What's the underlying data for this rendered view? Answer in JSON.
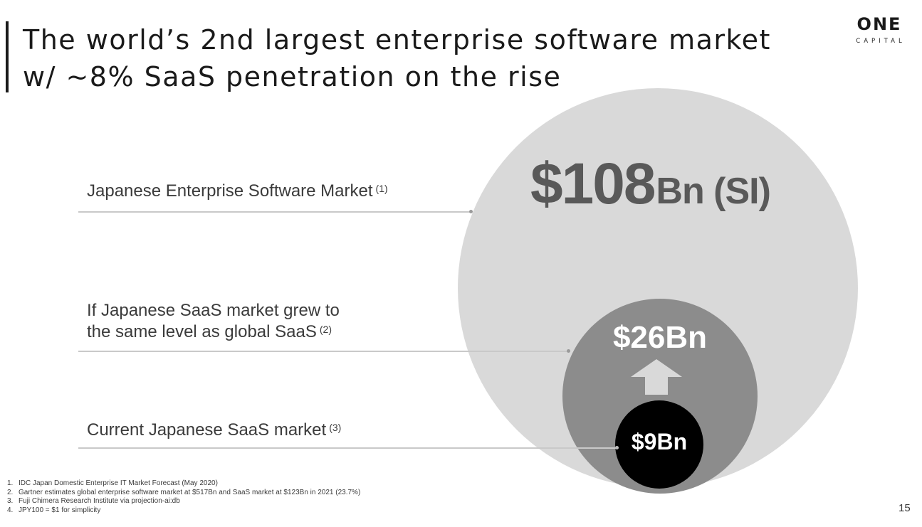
{
  "header": {
    "title_line1": "The world’s 2nd largest enterprise software market",
    "title_line2": "w/ ~8% SaaS penetration on the rise"
  },
  "logo": {
    "main": "ONE",
    "sub": "CAPITAL"
  },
  "labels": [
    {
      "text": "Japanese Enterprise Software Market",
      "note": "(1)"
    },
    {
      "line1": "If Japanese SaaS market grew to",
      "line2": "the same level as global SaaS",
      "note": "(2)"
    },
    {
      "text": "Current Japanese SaaS market",
      "note": "(3)"
    }
  ],
  "circles": {
    "big": {
      "value": "$108",
      "unit": "Bn (SI)"
    },
    "mid": {
      "value": "$26Bn"
    },
    "small": {
      "value": "$9Bn"
    }
  },
  "colors": {
    "big_circle": "#d9d9d9",
    "mid_circle": "#8c8c8c",
    "small_circle": "#000000",
    "arrow": "#d9d9d9"
  },
  "footnotes": [
    {
      "num": "1.",
      "text": "IDC Japan Domestic Enterprise IT Market Forecast (May 2020)"
    },
    {
      "num": "2.",
      "text": "Gartner estimates global enterprise software market at $517Bn and SaaS market at $123Bn in 2021 (23.7%)"
    },
    {
      "num": "3.",
      "text": "Fuji Chimera Research Institute via projection-ai:db"
    },
    {
      "num": "4.",
      "text": "JPY100 = $1 for simplicity"
    }
  ],
  "page_number": "15"
}
